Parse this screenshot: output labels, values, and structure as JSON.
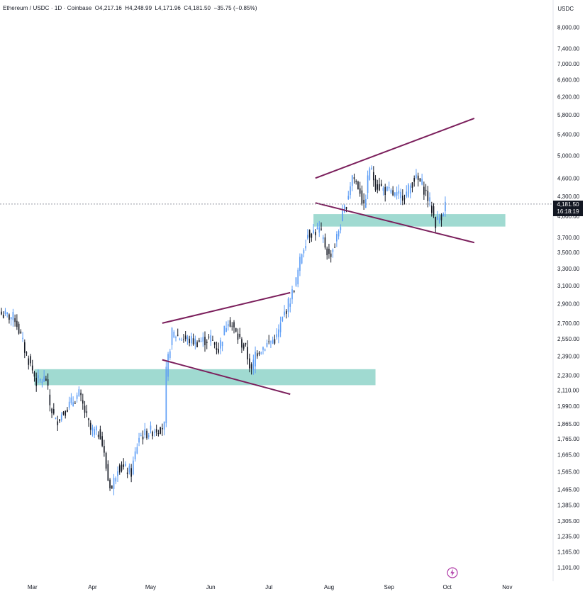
{
  "header": {
    "symbol": "Ethereum / USDC · 1D · Coinbase",
    "open": "O4,217.16",
    "high": "H4,248.99",
    "low": "L4,171.96",
    "close": "C4,181.50",
    "change": "−35.75 (−0.85%)"
  },
  "currency": "USDC",
  "last_price": {
    "price": "4,181.50",
    "countdown": "16:18:19"
  },
  "colors": {
    "up": "#5b9cf6",
    "down": "#131722",
    "zone": "#8fd4c9",
    "trendline": "#7b1f5c",
    "price_line": "#9598a1"
  },
  "icons": {
    "tradingview": "lightning-icon"
  },
  "chart_data": {
    "type": "candlestick",
    "y_scale": "log",
    "ylim": [
      1060,
      8400
    ],
    "y_ticks": [
      "8,000.00",
      "7,400.00",
      "7,000.00",
      "6,600.00",
      "6,200.00",
      "5,800.00",
      "5,400.00",
      "5,000.00",
      "4,600.00",
      "4,300.00",
      "4,000.00",
      "3,700.00",
      "3,500.00",
      "3,300.00",
      "3,100.00",
      "2,900.00",
      "2,700.00",
      "2,550.00",
      "2,390.00",
      "2,230.00",
      "2,110.00",
      "1,990.00",
      "1,865.00",
      "1,765.00",
      "1,665.00",
      "1,565.00",
      "1,465.00",
      "1,385.00",
      "1,305.00",
      "1,235.00",
      "1,165.00",
      "1,101.00"
    ],
    "y_tick_values": [
      8000,
      7400,
      7000,
      6600,
      6200,
      5800,
      5400,
      5000,
      4600,
      4300,
      4000,
      3700,
      3500,
      3300,
      3100,
      2900,
      2700,
      2550,
      2390,
      2230,
      2110,
      1990,
      1865,
      1765,
      1665,
      1565,
      1465,
      1385,
      1305,
      1235,
      1165,
      1101
    ],
    "x_ticks": [
      "Mar",
      "Apr",
      "May",
      "Jun",
      "Jul",
      "Aug",
      "Sep",
      "Oct",
      "Nov"
    ],
    "x_tick_dates": [
      "2025-03-01",
      "2025-04-01",
      "2025-05-01",
      "2025-06-01",
      "2025-07-01",
      "2025-08-01",
      "2025-09-01",
      "2025-10-01",
      "2025-11-01"
    ],
    "xlim": [
      "2025-02-13",
      "2025-11-10"
    ],
    "anchors": [
      [
        "2025-02-13",
        2790
      ],
      [
        "2025-02-20",
        2750
      ],
      [
        "2025-02-25",
        2450
      ],
      [
        "2025-03-03",
        2180
      ],
      [
        "2025-03-08",
        2200
      ],
      [
        "2025-03-10",
        2000
      ],
      [
        "2025-03-13",
        1880
      ],
      [
        "2025-03-20",
        2000
      ],
      [
        "2025-03-25",
        2080
      ],
      [
        "2025-03-31",
        1820
      ],
      [
        "2025-04-05",
        1800
      ],
      [
        "2025-04-09",
        1520
      ],
      [
        "2025-04-11",
        1470
      ],
      [
        "2025-04-14",
        1600
      ],
      [
        "2025-04-21",
        1560
      ],
      [
        "2025-04-25",
        1780
      ],
      [
        "2025-05-02",
        1820
      ],
      [
        "2025-05-08",
        1850
      ],
      [
        "2025-05-09",
        2250
      ],
      [
        "2025-05-12",
        2600
      ],
      [
        "2025-05-18",
        2550
      ],
      [
        "2025-05-25",
        2520
      ],
      [
        "2025-06-01",
        2550
      ],
      [
        "2025-06-05",
        2450
      ],
      [
        "2025-06-10",
        2750
      ],
      [
        "2025-06-15",
        2560
      ],
      [
        "2025-06-19",
        2450
      ],
      [
        "2025-06-22",
        2250
      ],
      [
        "2025-06-24",
        2420
      ],
      [
        "2025-06-30",
        2500
      ],
      [
        "2025-07-05",
        2560
      ],
      [
        "2025-07-09",
        2800
      ],
      [
        "2025-07-12",
        2950
      ],
      [
        "2025-07-15",
        3150
      ],
      [
        "2025-07-18",
        3500
      ],
      [
        "2025-07-21",
        3750
      ],
      [
        "2025-07-27",
        3800
      ],
      [
        "2025-08-01",
        3450
      ],
      [
        "2025-08-04",
        3600
      ],
      [
        "2025-08-07",
        3900
      ],
      [
        "2025-08-10",
        4200
      ],
      [
        "2025-08-13",
        4650
      ],
      [
        "2025-08-17",
        4400
      ],
      [
        "2025-08-19",
        4100
      ],
      [
        "2025-08-22",
        4800
      ],
      [
        "2025-08-25",
        4500
      ],
      [
        "2025-08-30",
        4400
      ],
      [
        "2025-09-05",
        4300
      ],
      [
        "2025-09-10",
        4350
      ],
      [
        "2025-09-14",
        4600
      ],
      [
        "2025-09-18",
        4500
      ],
      [
        "2025-09-22",
        4200
      ],
      [
        "2025-09-25",
        3900
      ],
      [
        "2025-09-28",
        4020
      ],
      [
        "2025-09-30",
        4181.5
      ]
    ],
    "zones": [
      {
        "start": "2025-03-02",
        "end": "2025-08-25",
        "low": 2150,
        "high": 2280
      },
      {
        "start": "2025-07-24",
        "end": "2025-10-31",
        "low": 3850,
        "high": 4030
      }
    ],
    "trendlines": [
      {
        "from": [
          "2025-05-07",
          2700
        ],
        "to": [
          "2025-07-12",
          3020
        ]
      },
      {
        "from": [
          "2025-05-07",
          2360
        ],
        "to": [
          "2025-07-12",
          2080
        ]
      },
      {
        "from": [
          "2025-07-25",
          4600
        ],
        "to": [
          "2025-10-15",
          5730
        ]
      },
      {
        "from": [
          "2025-07-25",
          4200
        ],
        "to": [
          "2025-10-15",
          3630
        ]
      }
    ],
    "last_price": 4181.5
  }
}
